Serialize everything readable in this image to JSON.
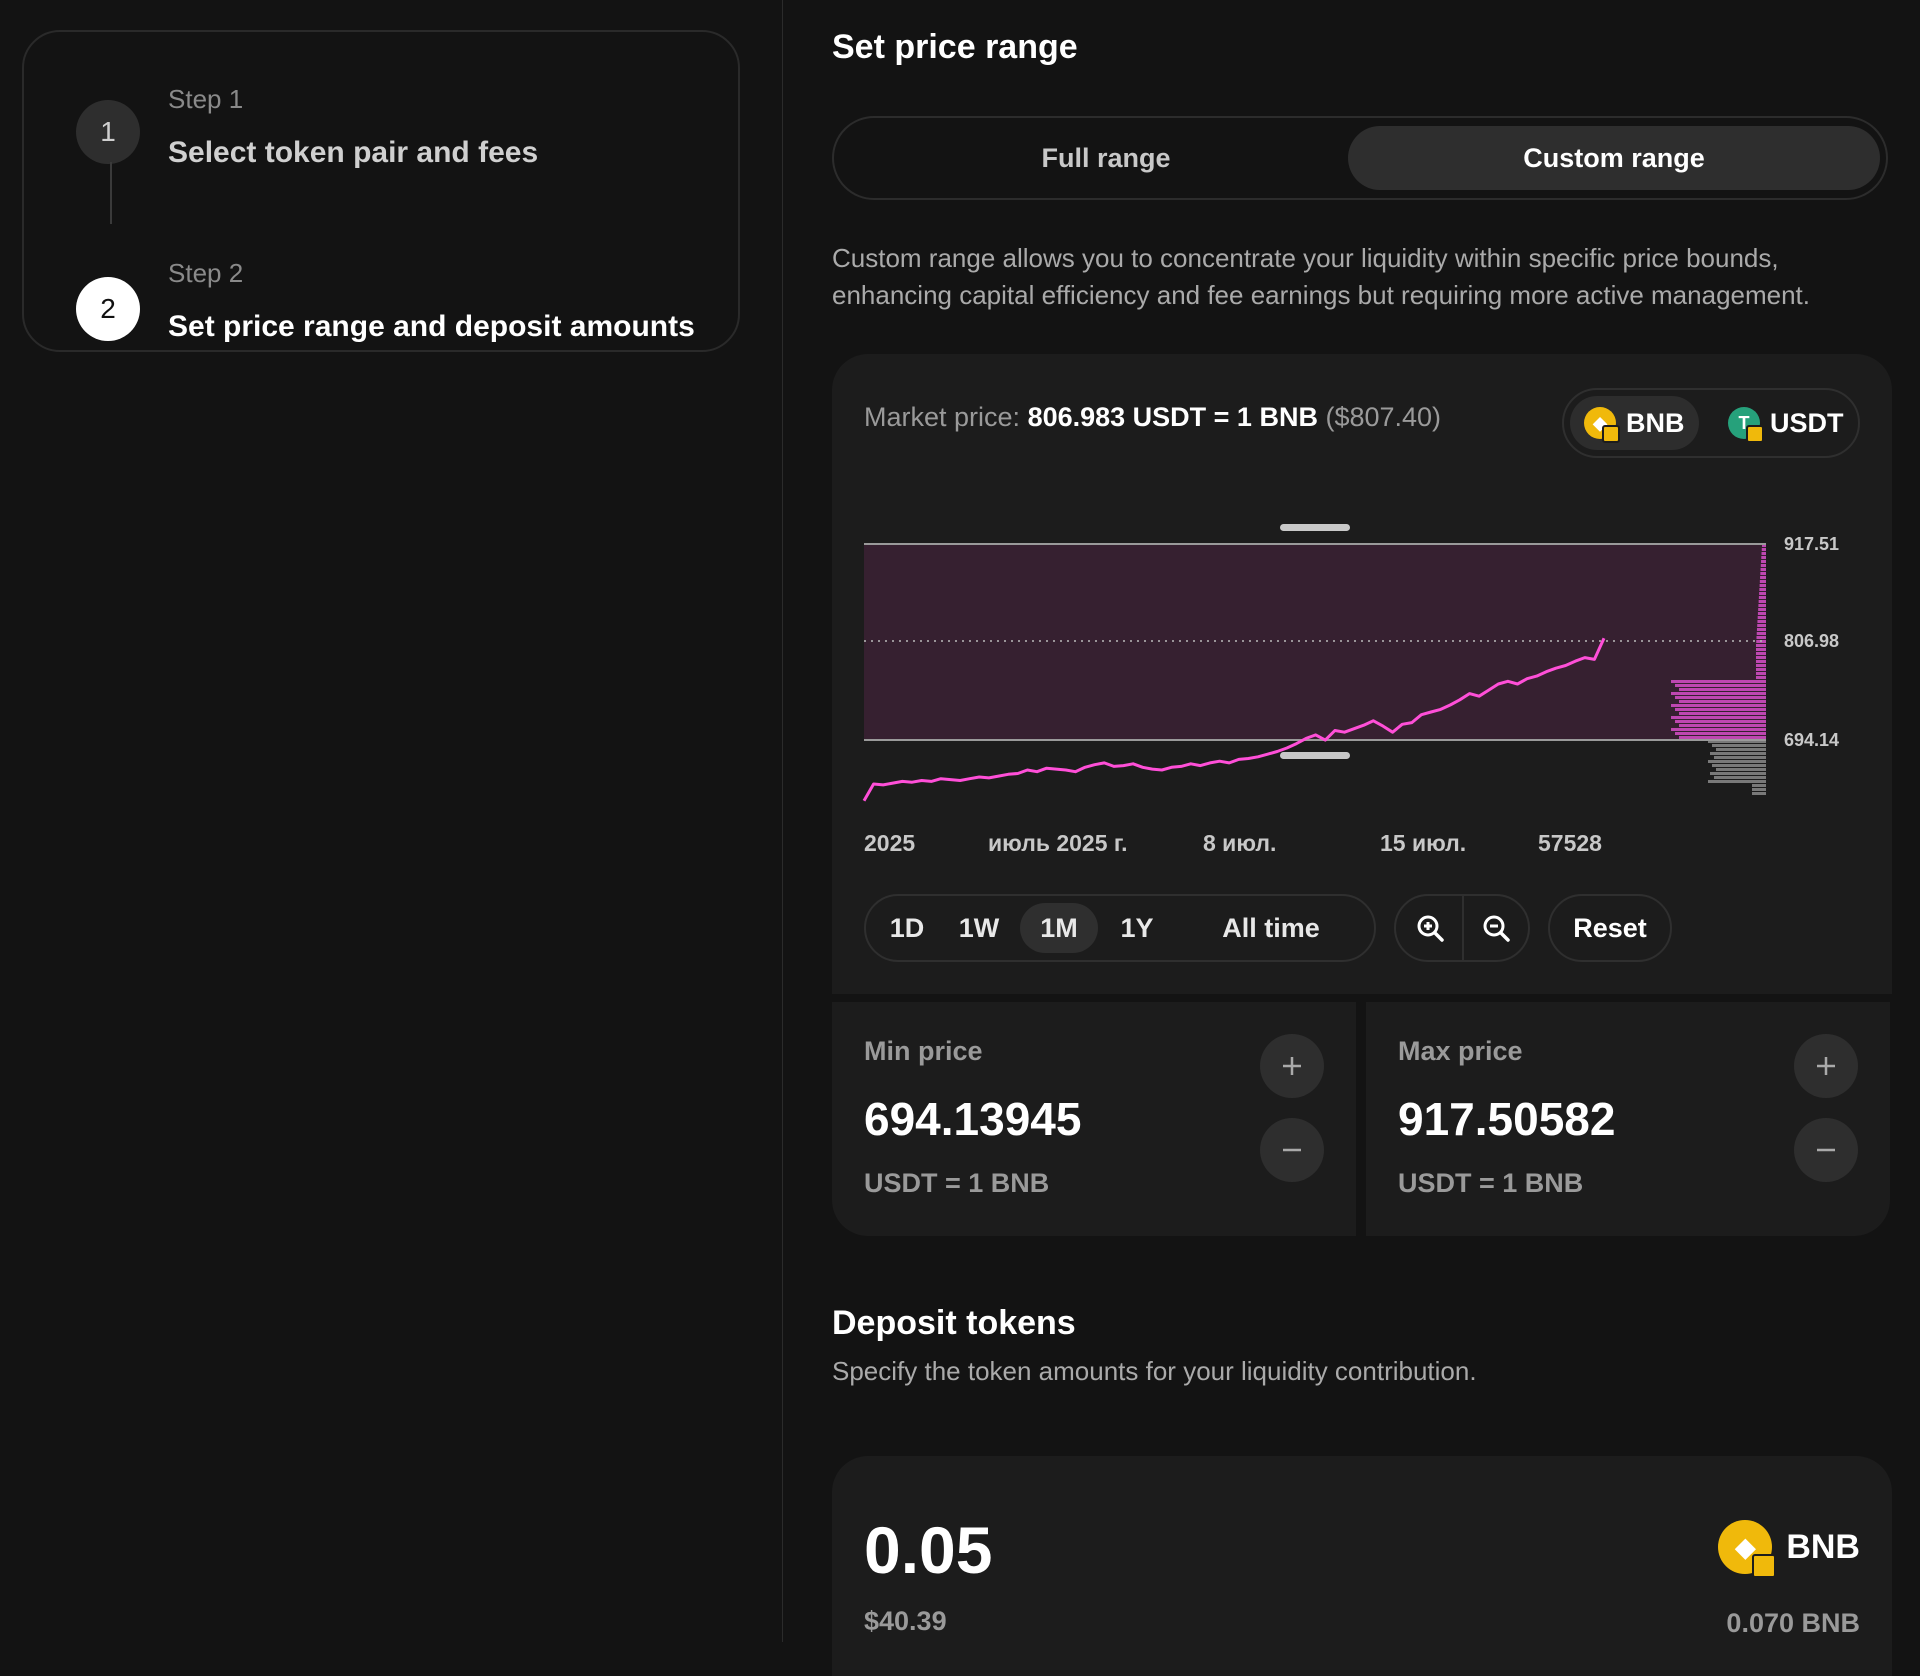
{
  "steps": [
    {
      "number": "1",
      "label": "Step 1",
      "title": "Select token pair and fees"
    },
    {
      "number": "2",
      "label": "Step 2",
      "title": "Set price range and deposit amounts"
    }
  ],
  "price_range": {
    "title": "Set price range",
    "full_range_label": "Full range",
    "custom_range_label": "Custom range",
    "selected": "Custom range",
    "description": "Custom range allows you to concentrate your liquidity within specific price bounds, enhancing capital efficiency and fee earnings but requiring more active management."
  },
  "market": {
    "label": "Market price:",
    "value": "806.983 USDT = 1 BNB",
    "usd": "($807.40)"
  },
  "tokens": {
    "base": "BNB",
    "quote": "USDT",
    "selected": "BNB"
  },
  "chart_data": {
    "type": "line",
    "x_tick_labels": [
      "2025",
      "июль 2025 г.",
      "8 июл.",
      "15 июл.",
      "57528"
    ],
    "y_tick_labels": [
      "917.51",
      "806.98",
      "694.14"
    ],
    "range": {
      "min": 694.14,
      "max": 917.51
    },
    "current_price": 806.98,
    "ylim": [
      620,
      960
    ],
    "series": [
      {
        "values": [
          625,
          644,
          643,
          645,
          647,
          646,
          648,
          647,
          650,
          649,
          648,
          650,
          652,
          651,
          653,
          655,
          656,
          660,
          658,
          662,
          661,
          660,
          658,
          663,
          666,
          668,
          664,
          665,
          667,
          663,
          661,
          660,
          663,
          664,
          667,
          665,
          668,
          670,
          668,
          672,
          673,
          675,
          678,
          681,
          685,
          690,
          696,
          700,
          694,
          705,
          703,
          707,
          711,
          716,
          710,
          703,
          712,
          714,
          723,
          726,
          729,
          734,
          740,
          747,
          744,
          751,
          758,
          761,
          758,
          764,
          767,
          772,
          776,
          779,
          784,
          788,
          786,
          810
        ]
      }
    ],
    "liquidity_color_in_range": "#d64fc8",
    "liquidity_color_out_of_range": "#8a8a8a",
    "line_color": "#ff4fd8",
    "range_fill": "#362030"
  },
  "periods": {
    "options": [
      "1D",
      "1W",
      "1M",
      "1Y",
      "All time"
    ],
    "selected": "1M"
  },
  "zoom": {
    "in_icon": "zoom-in-icon",
    "out_icon": "zoom-out-icon",
    "reset_label": "Reset"
  },
  "min_price": {
    "label": "Min price",
    "value": "694.13945",
    "unit": "USDT = 1 BNB"
  },
  "max_price": {
    "label": "Max price",
    "value": "917.50582",
    "unit": "USDT = 1 BNB"
  },
  "deposit": {
    "title": "Deposit tokens",
    "subtitle": "Specify the token amounts for your liquidity contribution.",
    "amount": "0.05",
    "usd_value": "$40.39",
    "token": "BNB",
    "balance": "0.070 BNB"
  },
  "colors": {
    "background": "#131313",
    "card": "#1c1c1c",
    "accent": "#ff4fd8",
    "bnb": "#f0b90b",
    "usdt": "#26a17b"
  }
}
